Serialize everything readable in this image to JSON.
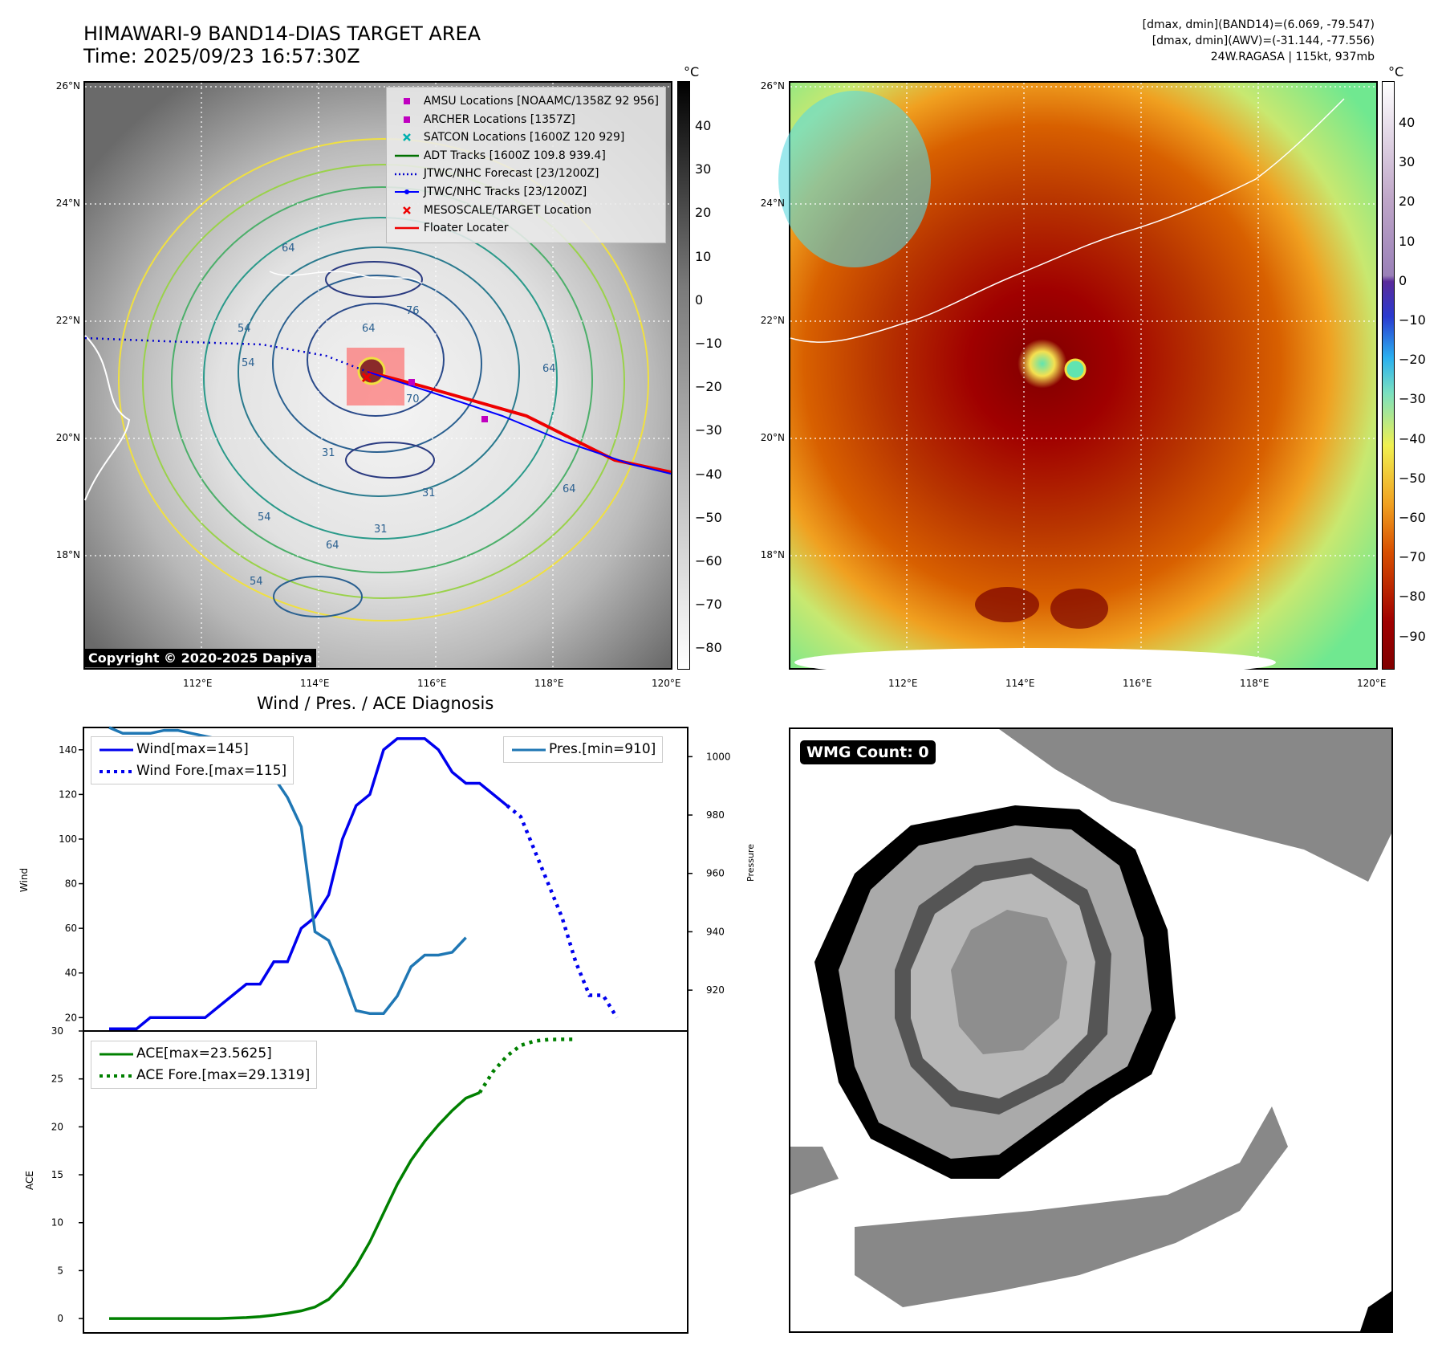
{
  "header": {
    "title_line1": "HIMAWARI-9 BAND14-DIAS TARGET AREA",
    "title_line2": "Time: 2025/09/23 16:57:30Z",
    "info_line1": "[dmax, dmin](BAND14)=(6.069, -79.547)",
    "info_line2": "[dmax, dmin](AWV)=(-31.144, -77.556)",
    "info_line3": "24W.RAGASA | 115kt, 937mb"
  },
  "map_left": {
    "lat_labels": [
      "26°N",
      "24°N",
      "22°N",
      "20°N",
      "18°N"
    ],
    "lon_labels": [
      "112°E",
      "114°E",
      "116°E",
      "118°E",
      "120°E"
    ],
    "contour_labels": [
      "64",
      "54",
      "76",
      "64",
      "70",
      "54",
      "64",
      "31",
      "54",
      "64",
      "31",
      "31",
      "54",
      "64"
    ],
    "copyright": "Copyright © 2020-2025 Dapiya",
    "legend": [
      {
        "label": "AMSU Locations [NOAAMC/1358Z 92 956]",
        "symbol": "square",
        "color": "#c000c0"
      },
      {
        "label": "ARCHER Locations [1357Z]",
        "symbol": "square",
        "color": "#c000c0"
      },
      {
        "label": "SATCON Locations [1600Z 120 929]",
        "symbol": "x",
        "color": "#00b0b0"
      },
      {
        "label": "ADT Tracks [1600Z 109.8 939.4]",
        "symbol": "line",
        "color": "#007000"
      },
      {
        "label": "JTWC/NHC Forecast [23/1200Z]",
        "symbol": "dotted",
        "color": "#0000cc"
      },
      {
        "label": "JTWC/NHC Tracks [23/1200Z]",
        "symbol": "dotline",
        "color": "#0000ff"
      },
      {
        "label": "MESOSCALE/TARGET Location",
        "symbol": "x",
        "color": "#ee0000"
      },
      {
        "label": "Floater Locater",
        "symbol": "line",
        "color": "#ee0000"
      }
    ],
    "colorbar_unit": "°C",
    "colorbar_ticks": [
      "40",
      "30",
      "20",
      "10",
      "0",
      "−10",
      "−20",
      "−30",
      "−40",
      "−50",
      "−60",
      "−70",
      "−80"
    ]
  },
  "map_right": {
    "lat_labels": [
      "26°N",
      "24°N",
      "22°N",
      "20°N",
      "18°N"
    ],
    "lon_labels": [
      "112°E",
      "114°E",
      "116°E",
      "118°E",
      "120°E"
    ],
    "colorbar_unit": "°C",
    "colorbar_ticks": [
      "40",
      "30",
      "20",
      "10",
      "0",
      "−10",
      "−20",
      "−30",
      "−40",
      "−50",
      "−60",
      "−70",
      "−80",
      "−90"
    ]
  },
  "wmg": {
    "label": "WMG Count: 0"
  },
  "chart_data": [
    {
      "type": "line",
      "title": "Wind / Pres. / ACE Diagnosis",
      "ylabel": "Wind",
      "ylim": [
        14,
        150
      ],
      "yticks": [
        20,
        40,
        60,
        80,
        100,
        120,
        140
      ],
      "series": [
        {
          "name": "Wind[max=145]",
          "color": "#0000ee",
          "style": "solid",
          "values": [
            15,
            15,
            15,
            20,
            20,
            20,
            20,
            20,
            25,
            30,
            35,
            35,
            45,
            45,
            60,
            65,
            75,
            100,
            115,
            120,
            140,
            145,
            145,
            145,
            140,
            130,
            125,
            125,
            120,
            115
          ]
        },
        {
          "name": "Wind Fore.[max=115]",
          "color": "#0000ee",
          "style": "dotted",
          "values": [
            115,
            110,
            95,
            80,
            65,
            45,
            30,
            30,
            20
          ]
        }
      ]
    },
    {
      "type": "line",
      "ylabel": "Pressure",
      "ylim": [
        906,
        1010
      ],
      "yticks": [
        920,
        940,
        960,
        980,
        1000
      ],
      "series": [
        {
          "name": "Pres.[min=910]",
          "color": "#1f77b4",
          "style": "solid",
          "values": [
            1010,
            1008,
            1008,
            1008,
            1009,
            1009,
            1008,
            1007,
            1006,
            1003,
            1001,
            998,
            993,
            986,
            976,
            940,
            937,
            926,
            913,
            912,
            912,
            918,
            928,
            932,
            932,
            933,
            938
          ]
        }
      ]
    },
    {
      "type": "line",
      "ylabel": "ACE",
      "ylim": [
        -1.5,
        30
      ],
      "yticks": [
        0,
        5,
        10,
        15,
        20,
        25,
        30
      ],
      "series": [
        {
          "name": "ACE[max=23.5625]",
          "color": "#008000",
          "style": "solid",
          "values": [
            0.0,
            0.0,
            0.0,
            0.0,
            0.0,
            0.0,
            0.0,
            0.0,
            0.0,
            0.05,
            0.1,
            0.2,
            0.35,
            0.55,
            0.8,
            1.2,
            2.0,
            3.5,
            5.5,
            8.0,
            11.0,
            14.0,
            16.5,
            18.5,
            20.2,
            21.7,
            23.0,
            23.5625
          ]
        },
        {
          "name": "ACE Fore.[max=29.1319]",
          "color": "#008000",
          "style": "dotted",
          "values": [
            23.5625,
            25.8,
            27.4,
            28.5,
            28.95,
            29.1,
            29.1319,
            29.1319
          ]
        }
      ]
    }
  ]
}
